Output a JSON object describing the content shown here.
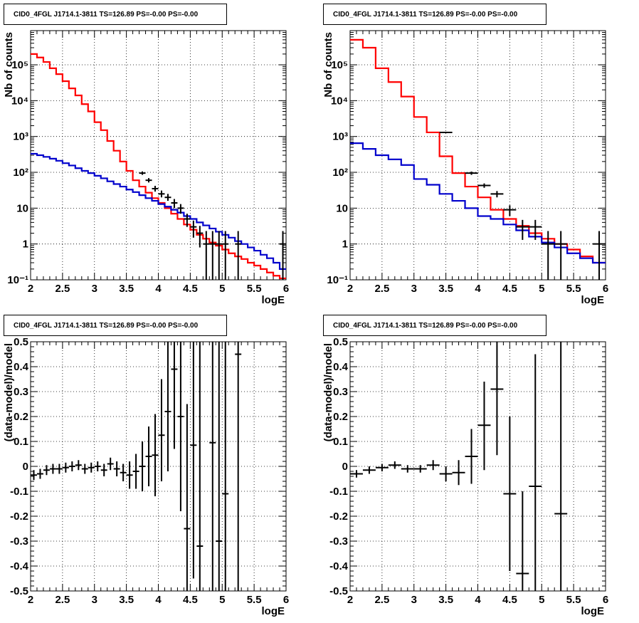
{
  "chart_data": [
    {
      "type": "line",
      "title": "CID0_4FGL J1714.1-3811 TS=126.89 PS=-0.00 PS=-0.00",
      "xlabel": "logE",
      "ylabel": "Nb of counts",
      "xlim": [
        2,
        6
      ],
      "ylim": [
        0.1,
        900000
      ],
      "yscale": "log",
      "grid": true,
      "xticks": [
        "2",
        "2.5",
        "3",
        "3.5",
        "4",
        "4.5",
        "5",
        "5.5",
        "6"
      ],
      "yticks": [
        "10⁻¹",
        "1",
        "10",
        "10²",
        "10³",
        "10⁴",
        "10⁵"
      ],
      "bin_edges": [
        2.0,
        2.1,
        2.2,
        2.3,
        2.4,
        2.5,
        2.6,
        2.7,
        2.8,
        2.9,
        3.0,
        3.1,
        3.2,
        3.3,
        3.4,
        3.5,
        3.6,
        3.7,
        3.8,
        3.9,
        4.0,
        4.1,
        4.2,
        4.3,
        4.4,
        4.5,
        4.6,
        4.7,
        4.8,
        4.9,
        5.0,
        5.1,
        5.2,
        5.3,
        5.4,
        5.5,
        5.6,
        5.7,
        5.8,
        5.9,
        6.0
      ],
      "series": [
        {
          "color": "#ff0000",
          "values": [
            200000,
            160000,
            120000,
            80000,
            55000,
            35000,
            22000,
            14000,
            8000,
            5000,
            2500,
            1500,
            750,
            400,
            200,
            110,
            60,
            40,
            27,
            19,
            14,
            10,
            7,
            5,
            3.5,
            2.5,
            1.8,
            1.4,
            1.1,
            0.9,
            0.7,
            0.55,
            0.45,
            0.38,
            0.3,
            0.25,
            0.2,
            0.16,
            0.13,
            0.11
          ]
        },
        {
          "color": "#0000cc",
          "values": [
            330,
            300,
            270,
            240,
            210,
            180,
            155,
            130,
            110,
            95,
            80,
            68,
            56,
            47,
            40,
            33,
            28,
            23,
            19,
            16,
            13,
            11,
            9,
            7.5,
            6,
            5,
            4,
            3.3,
            2.7,
            2.2,
            1.8,
            1.5,
            1.2,
            1,
            0.8,
            0.65,
            0.5,
            0.4,
            0.3,
            0.2
          ]
        }
      ],
      "points": [
        {
          "x": 3.75,
          "y": 95,
          "lo": 85,
          "hi": 106,
          "xerr": 0.05
        },
        {
          "x": 3.85,
          "y": 60,
          "lo": 52,
          "hi": 69,
          "xerr": 0.05
        },
        {
          "x": 3.95,
          "y": 35,
          "lo": 29,
          "hi": 42,
          "xerr": 0.05
        },
        {
          "x": 4.05,
          "y": 25,
          "lo": 20,
          "hi": 31,
          "xerr": 0.05
        },
        {
          "x": 4.15,
          "y": 20,
          "lo": 16,
          "hi": 25,
          "xerr": 0.05
        },
        {
          "x": 4.25,
          "y": 14,
          "lo": 10,
          "hi": 18,
          "xerr": 0.05
        },
        {
          "x": 4.35,
          "y": 10,
          "lo": 7,
          "hi": 13,
          "xerr": 0.05
        },
        {
          "x": 4.45,
          "y": 5,
          "lo": 3,
          "hi": 7,
          "xerr": 0.05
        },
        {
          "x": 4.55,
          "y": 3,
          "lo": 1.5,
          "hi": 4.5,
          "xerr": 0.05
        },
        {
          "x": 4.65,
          "y": 2,
          "lo": 0.8,
          "hi": 3.2,
          "xerr": 0.05
        },
        {
          "x": 4.75,
          "y": 1,
          "lo": 0.1,
          "hi": 2.3,
          "xerr": 0.05
        },
        {
          "x": 4.85,
          "y": 1,
          "lo": 0.1,
          "hi": 2.3,
          "xerr": 0.05
        },
        {
          "x": 4.95,
          "y": 1,
          "lo": 0.1,
          "hi": 2.3,
          "xerr": 0.05
        },
        {
          "x": 5.05,
          "y": 1,
          "lo": 0.1,
          "hi": 2.3,
          "xerr": 0.05
        },
        {
          "x": 5.25,
          "y": 1,
          "lo": 0.1,
          "hi": 2.3,
          "xerr": 0.05
        },
        {
          "x": 5.95,
          "y": 1,
          "lo": 0.1,
          "hi": 2.3,
          "xerr": 0.05
        }
      ]
    },
    {
      "type": "line",
      "title": "CID0_4FGL J1714.1-3811 TS=126.89 PS=-0.00 PS=-0.00",
      "xlabel": "logE",
      "ylabel": "Nb of counts",
      "xlim": [
        2,
        6
      ],
      "ylim": [
        0.1,
        900000
      ],
      "yscale": "log",
      "grid": true,
      "xticks": [
        "2",
        "2.5",
        "3",
        "3.5",
        "4",
        "4.5",
        "5",
        "5.5",
        "6"
      ],
      "yticks": [
        "10⁻¹",
        "1",
        "10",
        "10²",
        "10³",
        "10⁴",
        "10⁵"
      ],
      "bin_edges": [
        2.0,
        2.2,
        2.4,
        2.6,
        2.8,
        3.0,
        3.2,
        3.4,
        3.6,
        3.8,
        4.0,
        4.2,
        4.4,
        4.6,
        4.8,
        5.0,
        5.2,
        5.4,
        5.6,
        5.8,
        6.0
      ],
      "series": [
        {
          "color": "#ff0000",
          "values": [
            500000,
            300000,
            80000,
            33000,
            13000,
            3500,
            1300,
            280,
            95,
            40,
            20,
            9,
            5,
            3.2,
            2,
            1.4,
            1,
            0.7,
            0.45,
            0.3
          ]
        },
        {
          "color": "#0000cc",
          "values": [
            650,
            450,
            300,
            230,
            160,
            65,
            45,
            25,
            16,
            10,
            6,
            5,
            3.5,
            2.4,
            1.6,
            1.1,
            0.8,
            0.55,
            0.4,
            0.3
          ]
        }
      ],
      "points": [
        {
          "x": 3.5,
          "y": 1300,
          "lo": 1260,
          "hi": 1340,
          "xerr": 0.1
        },
        {
          "x": 3.9,
          "y": 95,
          "lo": 85,
          "hi": 105,
          "xerr": 0.1
        },
        {
          "x": 4.1,
          "y": 43,
          "lo": 37,
          "hi": 49,
          "xerr": 0.1
        },
        {
          "x": 4.3,
          "y": 25,
          "lo": 20,
          "hi": 30,
          "xerr": 0.1
        },
        {
          "x": 4.5,
          "y": 9,
          "lo": 6,
          "hi": 12,
          "xerr": 0.1
        },
        {
          "x": 4.7,
          "y": 3,
          "lo": 1.3,
          "hi": 4.7,
          "xerr": 0.1
        },
        {
          "x": 4.9,
          "y": 3,
          "lo": 1.3,
          "hi": 4.7,
          "xerr": 0.1
        },
        {
          "x": 5.1,
          "y": 1,
          "lo": 0.1,
          "hi": 2.3,
          "xerr": 0.1
        },
        {
          "x": 5.3,
          "y": 1,
          "lo": 0.1,
          "hi": 2.3,
          "xerr": 0.1
        },
        {
          "x": 5.9,
          "y": 1,
          "lo": 0.1,
          "hi": 2.3,
          "xerr": 0.1
        }
      ]
    },
    {
      "type": "scatter",
      "title": "CID0_4FGL J1714.1-3811 TS=126.89 PS=-0.00 PS=-0.00",
      "xlabel": "logE",
      "ylabel": "(data-model)/model",
      "xlim": [
        2,
        6
      ],
      "ylim": [
        -0.5,
        0.5
      ],
      "yscale": "linear",
      "grid": true,
      "xticks": [
        "2",
        "2.5",
        "3",
        "3.5",
        "4",
        "4.5",
        "5",
        "5.5",
        "6"
      ],
      "yticks": [
        "-0.5",
        "-0.4",
        "-0.3",
        "-0.2",
        "-0.1",
        "0",
        "0.1",
        "0.2",
        "0.3",
        "0.4",
        "0.5"
      ],
      "points": [
        {
          "x": 2.05,
          "y": -0.035,
          "lo": -0.055,
          "hi": -0.015,
          "xerr": 0.05
        },
        {
          "x": 2.15,
          "y": -0.03,
          "lo": -0.05,
          "hi": -0.01,
          "xerr": 0.05
        },
        {
          "x": 2.25,
          "y": -0.015,
          "lo": -0.035,
          "hi": 0.005,
          "xerr": 0.05
        },
        {
          "x": 2.35,
          "y": -0.01,
          "lo": -0.03,
          "hi": 0.01,
          "xerr": 0.05
        },
        {
          "x": 2.45,
          "y": -0.01,
          "lo": -0.03,
          "hi": 0.01,
          "xerr": 0.05
        },
        {
          "x": 2.55,
          "y": -0.005,
          "lo": -0.025,
          "hi": 0.015,
          "xerr": 0.05
        },
        {
          "x": 2.65,
          "y": 0.0,
          "lo": -0.02,
          "hi": 0.02,
          "xerr": 0.05
        },
        {
          "x": 2.75,
          "y": 0.005,
          "lo": -0.015,
          "hi": 0.025,
          "xerr": 0.05
        },
        {
          "x": 2.85,
          "y": -0.01,
          "lo": -0.03,
          "hi": 0.01,
          "xerr": 0.05
        },
        {
          "x": 2.95,
          "y": -0.005,
          "lo": -0.025,
          "hi": 0.015,
          "xerr": 0.05
        },
        {
          "x": 3.05,
          "y": 0.0,
          "lo": -0.02,
          "hi": 0.02,
          "xerr": 0.05
        },
        {
          "x": 3.15,
          "y": -0.015,
          "lo": -0.04,
          "hi": 0.01,
          "xerr": 0.05
        },
        {
          "x": 3.25,
          "y": 0.01,
          "lo": -0.015,
          "hi": 0.035,
          "xerr": 0.05
        },
        {
          "x": 3.35,
          "y": -0.01,
          "lo": -0.04,
          "hi": 0.02,
          "xerr": 0.05
        },
        {
          "x": 3.45,
          "y": -0.025,
          "lo": -0.06,
          "hi": 0.01,
          "xerr": 0.05
        },
        {
          "x": 3.55,
          "y": -0.035,
          "lo": -0.09,
          "hi": 0.02,
          "xerr": 0.05
        },
        {
          "x": 3.65,
          "y": -0.02,
          "lo": -0.09,
          "hi": 0.05,
          "xerr": 0.05
        },
        {
          "x": 3.75,
          "y": 0.0,
          "lo": -0.1,
          "hi": 0.1,
          "xerr": 0.05
        },
        {
          "x": 3.85,
          "y": 0.04,
          "lo": -0.08,
          "hi": 0.16,
          "xerr": 0.05
        },
        {
          "x": 3.95,
          "y": 0.045,
          "lo": -0.12,
          "hi": 0.21,
          "xerr": 0.05
        },
        {
          "x": 4.05,
          "y": 0.125,
          "lo": -0.06,
          "hi": 0.35,
          "xerr": 0.05
        },
        {
          "x": 4.15,
          "y": 0.22,
          "lo": -0.02,
          "hi": 0.5,
          "xerr": 0.05
        },
        {
          "x": 4.25,
          "y": 0.39,
          "lo": 0.07,
          "hi": 0.5,
          "xerr": 0.05
        },
        {
          "x": 4.35,
          "y": 0.2,
          "lo": -0.18,
          "hi": 0.5,
          "xerr": 0.05
        },
        {
          "x": 4.45,
          "y": -0.25,
          "lo": -0.5,
          "hi": 0.25,
          "xerr": 0.05
        },
        {
          "x": 4.55,
          "y": 0.085,
          "lo": -0.45,
          "hi": 0.5,
          "xerr": 0.05
        },
        {
          "x": 4.65,
          "y": -0.32,
          "lo": -0.5,
          "hi": 0.5,
          "xerr": 0.05
        },
        {
          "x": 4.85,
          "y": 0.095,
          "lo": -0.5,
          "hi": 0.5,
          "xerr": 0.05
        },
        {
          "x": 4.95,
          "y": -0.3,
          "lo": -0.5,
          "hi": 0.5,
          "xerr": 0.05
        },
        {
          "x": 5.05,
          "y": -0.11,
          "lo": -0.5,
          "hi": 0.5,
          "xerr": 0.05
        },
        {
          "x": 5.25,
          "y": 0.45,
          "lo": -0.5,
          "hi": 0.5,
          "xerr": 0.05
        }
      ]
    },
    {
      "type": "scatter",
      "title": "CID0_4FGL J1714.1-3811 TS=126.89 PS=-0.00 PS=-0.00",
      "xlabel": "logE",
      "ylabel": "(data-model)/model",
      "xlim": [
        2,
        6
      ],
      "ylim": [
        -0.5,
        0.5
      ],
      "yscale": "linear",
      "grid": true,
      "xticks": [
        "2",
        "2.5",
        "3",
        "3.5",
        "4",
        "4.5",
        "5",
        "5.5",
        "6"
      ],
      "yticks": [
        "-0.5",
        "-0.4",
        "-0.3",
        "-0.2",
        "-0.1",
        "0",
        "0.1",
        "0.2",
        "0.3",
        "0.4",
        "0.5"
      ],
      "points": [
        {
          "x": 2.1,
          "y": -0.03,
          "lo": -0.045,
          "hi": -0.015,
          "xerr": 0.1
        },
        {
          "x": 2.3,
          "y": -0.015,
          "lo": -0.03,
          "hi": 0.0,
          "xerr": 0.1
        },
        {
          "x": 2.5,
          "y": -0.005,
          "lo": -0.02,
          "hi": 0.01,
          "xerr": 0.1
        },
        {
          "x": 2.7,
          "y": 0.005,
          "lo": -0.01,
          "hi": 0.02,
          "xerr": 0.1
        },
        {
          "x": 2.9,
          "y": -0.01,
          "lo": -0.025,
          "hi": 0.005,
          "xerr": 0.1
        },
        {
          "x": 3.1,
          "y": -0.01,
          "lo": -0.025,
          "hi": 0.005,
          "xerr": 0.1
        },
        {
          "x": 3.3,
          "y": 0.005,
          "lo": -0.015,
          "hi": 0.025,
          "xerr": 0.1
        },
        {
          "x": 3.5,
          "y": -0.03,
          "lo": -0.06,
          "hi": 0.0,
          "xerr": 0.1
        },
        {
          "x": 3.7,
          "y": -0.025,
          "lo": -0.075,
          "hi": 0.025,
          "xerr": 0.1
        },
        {
          "x": 3.9,
          "y": 0.04,
          "lo": -0.07,
          "hi": 0.15,
          "xerr": 0.1
        },
        {
          "x": 4.1,
          "y": 0.165,
          "lo": -0.015,
          "hi": 0.34,
          "xerr": 0.1
        },
        {
          "x": 4.3,
          "y": 0.31,
          "lo": 0.045,
          "hi": 0.5,
          "xerr": 0.1
        },
        {
          "x": 4.5,
          "y": -0.11,
          "lo": -0.42,
          "hi": 0.2,
          "xerr": 0.1
        },
        {
          "x": 4.7,
          "y": -0.43,
          "lo": -0.5,
          "hi": -0.1,
          "xerr": 0.1
        },
        {
          "x": 4.9,
          "y": -0.08,
          "lo": -0.5,
          "hi": 0.45,
          "xerr": 0.1
        },
        {
          "x": 5.3,
          "y": -0.19,
          "lo": -0.5,
          "hi": 0.5,
          "xerr": 0.1
        }
      ]
    }
  ]
}
